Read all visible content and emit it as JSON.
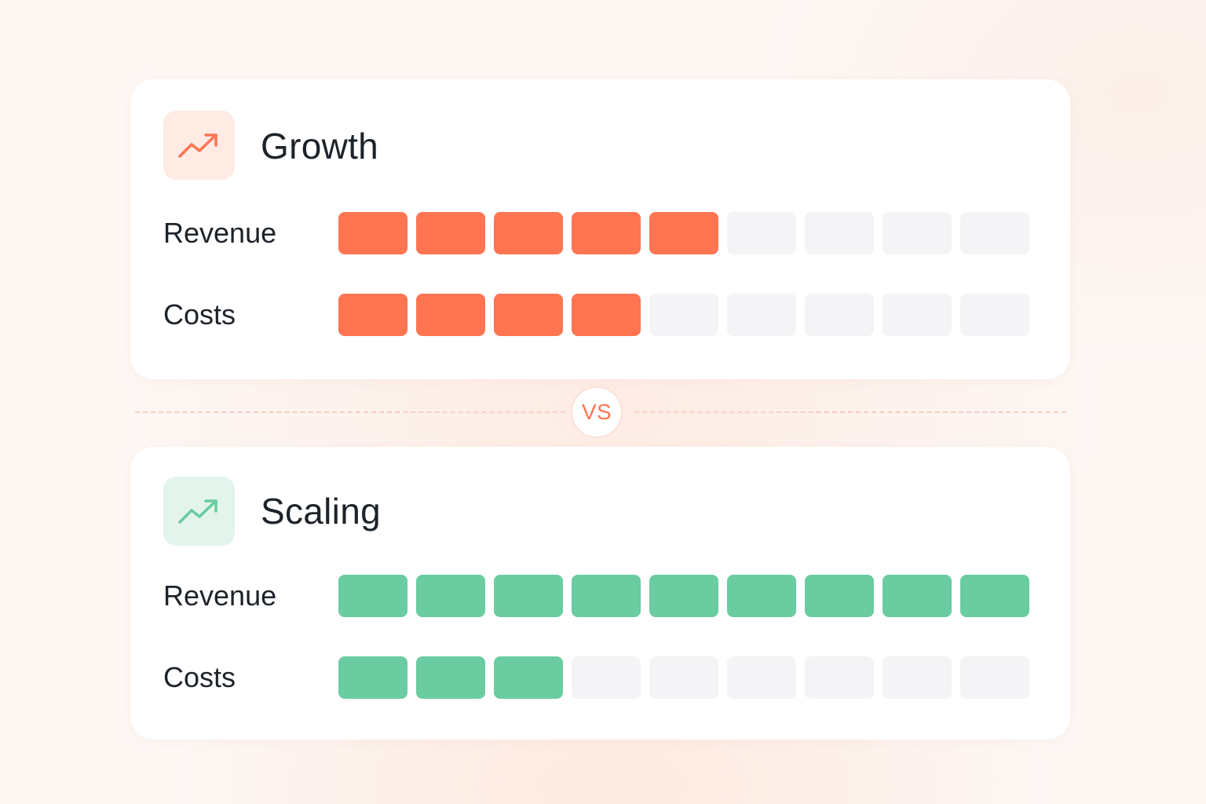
{
  "colors": {
    "growth_accent": "#ff7552",
    "growth_tile": "#feebe4",
    "scaling_accent": "#6acca0",
    "scaling_tile": "#e2f4ec",
    "empty_segment": "#f4f4f6"
  },
  "cards": [
    {
      "title": "Growth",
      "icon": "trending-up-icon",
      "metrics": [
        {
          "label": "Revenue",
          "filled": 5,
          "total": 9
        },
        {
          "label": "Costs",
          "filled": 4,
          "total": 9
        }
      ]
    },
    {
      "title": "Scaling",
      "icon": "trending-up-icon",
      "metrics": [
        {
          "label": "Revenue",
          "filled": 9,
          "total": 9
        },
        {
          "label": "Costs",
          "filled": 3,
          "total": 9
        }
      ]
    }
  ],
  "separator": {
    "label": "VS"
  }
}
